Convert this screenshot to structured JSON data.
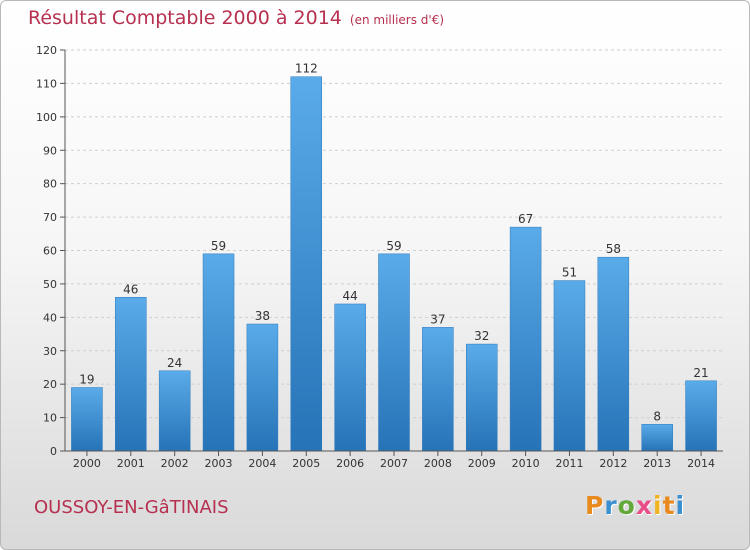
{
  "header": {
    "title": "Résultat Comptable 2000 à 2014",
    "unit": "(en milliers d'€)"
  },
  "footer": {
    "city": "OUSSOY-EN-GâTINAIS",
    "logo_text": "Proxiti"
  },
  "colors": {
    "bar": "#3f97dc",
    "bar_dark": "#2673b7",
    "title": "#b6304f"
  },
  "chart_data": {
    "type": "bar",
    "title": "Résultat Comptable 2000 à 2014",
    "subtitle": "(en milliers d'€)",
    "xlabel": "",
    "ylabel": "",
    "categories": [
      "2000",
      "2001",
      "2002",
      "2003",
      "2004",
      "2005",
      "2006",
      "2007",
      "2008",
      "2009",
      "2010",
      "2011",
      "2012",
      "2013",
      "2014"
    ],
    "values": [
      19,
      46,
      24,
      59,
      38,
      112,
      44,
      59,
      37,
      32,
      67,
      51,
      58,
      8,
      21
    ],
    "ylim": [
      0,
      120
    ],
    "yticks": [
      0,
      10,
      20,
      30,
      40,
      50,
      60,
      70,
      80,
      90,
      100,
      110,
      120
    ],
    "grid": true
  }
}
